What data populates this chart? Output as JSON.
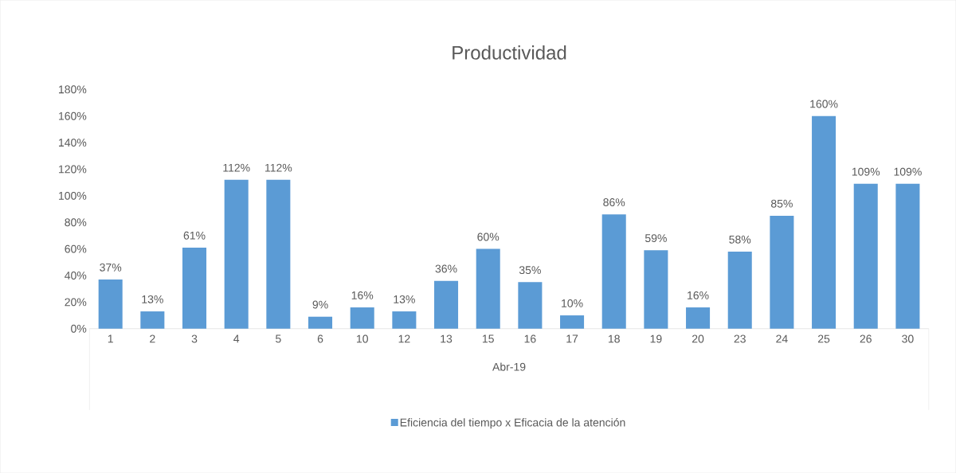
{
  "chart_data": {
    "type": "bar",
    "title": "Productividad",
    "xlabel": "Abr-19",
    "categories": [
      "1",
      "2",
      "3",
      "4",
      "5",
      "6",
      "10",
      "12",
      "13",
      "15",
      "16",
      "17",
      "18",
      "19",
      "20",
      "23",
      "24",
      "25",
      "26",
      "30"
    ],
    "series": [
      {
        "name": "Eficiencia del tiempo x Eficacia de la atención",
        "color": "#5b9bd5",
        "values": [
          37,
          13,
          61,
          112,
          112,
          9,
          16,
          13,
          36,
          60,
          35,
          10,
          86,
          59,
          16,
          58,
          85,
          160,
          109,
          109
        ],
        "value_labels": [
          "37%",
          "13%",
          "61%",
          "112%",
          "112%",
          "9%",
          "16%",
          "13%",
          "36%",
          "60%",
          "35%",
          "10%",
          "86%",
          "59%",
          "16%",
          "58%",
          "85%",
          "160%",
          "109%",
          "109%"
        ]
      }
    ],
    "ylim": [
      0,
      180
    ],
    "yticks": [
      {
        "value": 0,
        "label": "0%"
      },
      {
        "value": 20,
        "label": "20%"
      },
      {
        "value": 40,
        "label": "40%"
      },
      {
        "value": 60,
        "label": "60%"
      },
      {
        "value": 80,
        "label": "80%"
      },
      {
        "value": 100,
        "label": "100%"
      },
      {
        "value": 120,
        "label": "120%"
      },
      {
        "value": 140,
        "label": "140%"
      },
      {
        "value": 160,
        "label": "160%"
      },
      {
        "value": 180,
        "label": "180%"
      }
    ],
    "legend": "bottom",
    "grid": false
  }
}
